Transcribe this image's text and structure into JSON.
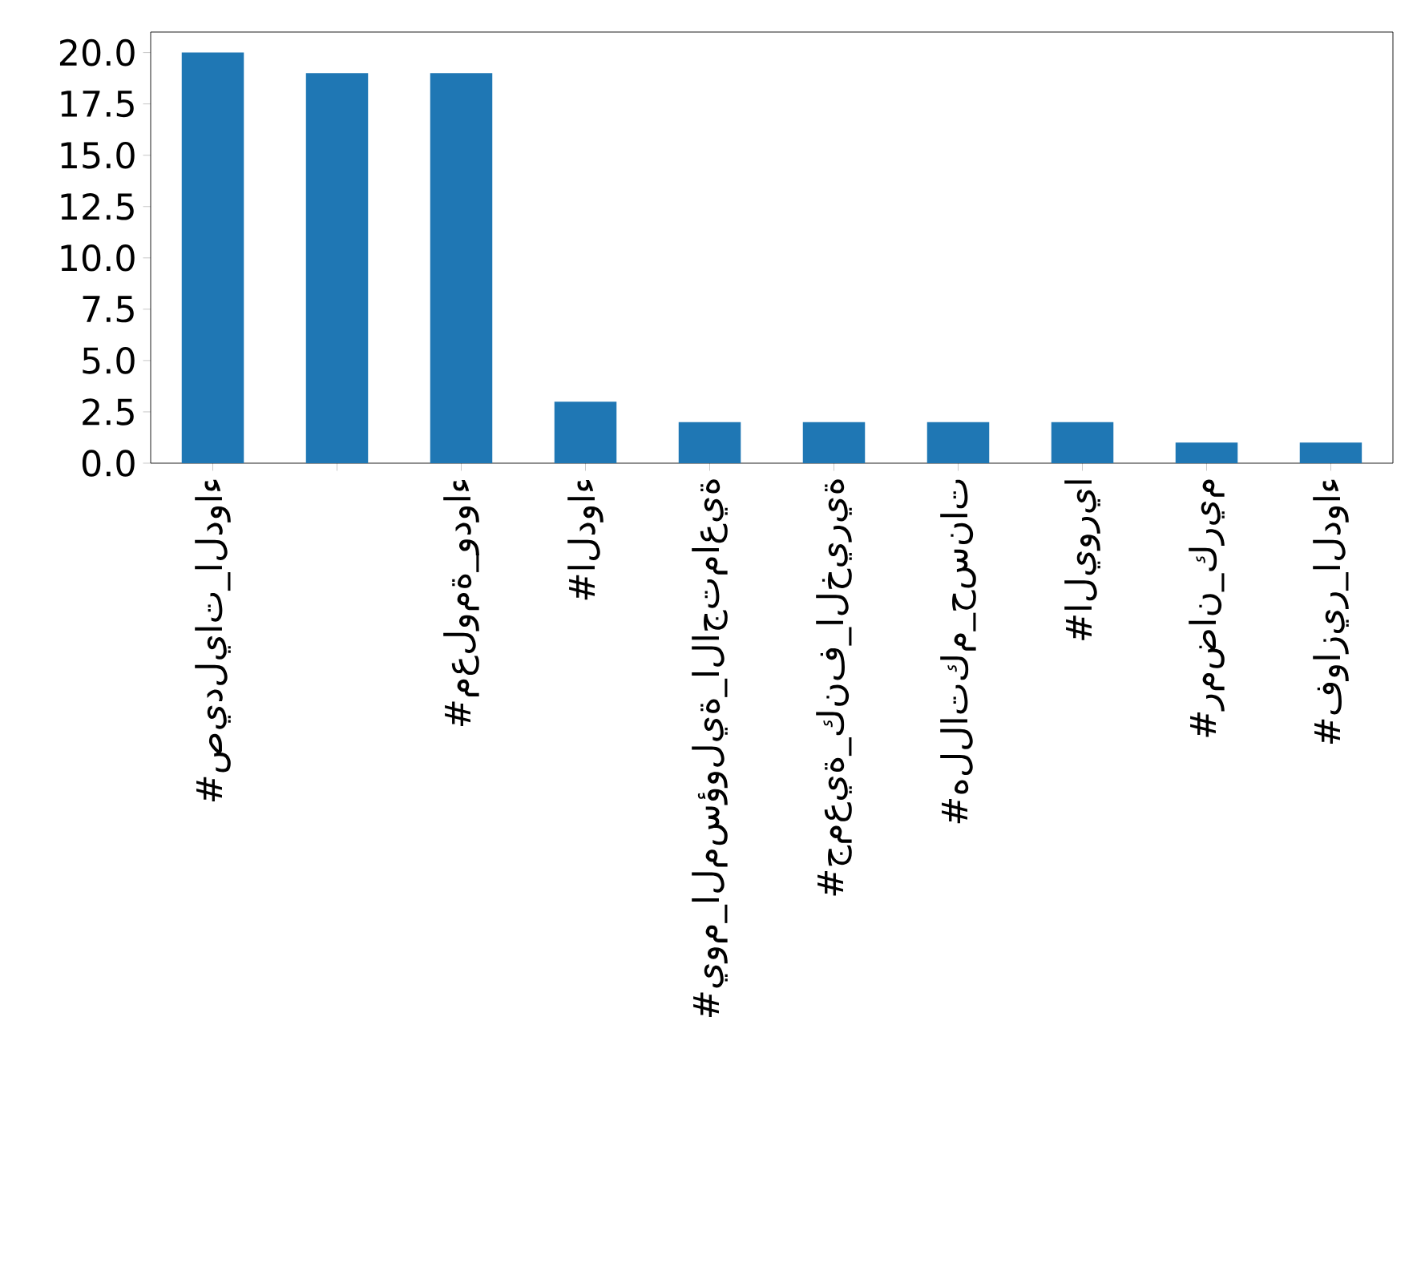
{
  "chart_data": {
    "type": "bar",
    "categories": [
      "#صيدليات_الدواء",
      null,
      "#معلومة_ودواء",
      "#الدواء",
      "#يوم_المسؤولية_الاجتماعية",
      "#جمعية_كنف_الخيرية",
      "#هللاتكم_حسنات",
      "#اليوريا",
      "#رمضان_كريم",
      "#فوازير_الدواء"
    ],
    "values": [
      20,
      19,
      19,
      3,
      2,
      2,
      2,
      2,
      1,
      1
    ],
    "color": "#1f77b4",
    "ylim": [
      0,
      21
    ],
    "yticks": [
      {
        "value": 0,
        "label": "0.0"
      },
      {
        "value": 2.5,
        "label": "2.5"
      },
      {
        "value": 5,
        "label": "5.0"
      },
      {
        "value": 7.5,
        "label": "7.5"
      },
      {
        "value": 10,
        "label": "10.0"
      },
      {
        "value": 12.5,
        "label": "12.5"
      },
      {
        "value": 15,
        "label": "15.0"
      },
      {
        "value": 17.5,
        "label": "17.5"
      },
      {
        "value": 20,
        "label": "20.0"
      }
    ],
    "grid": false
  }
}
